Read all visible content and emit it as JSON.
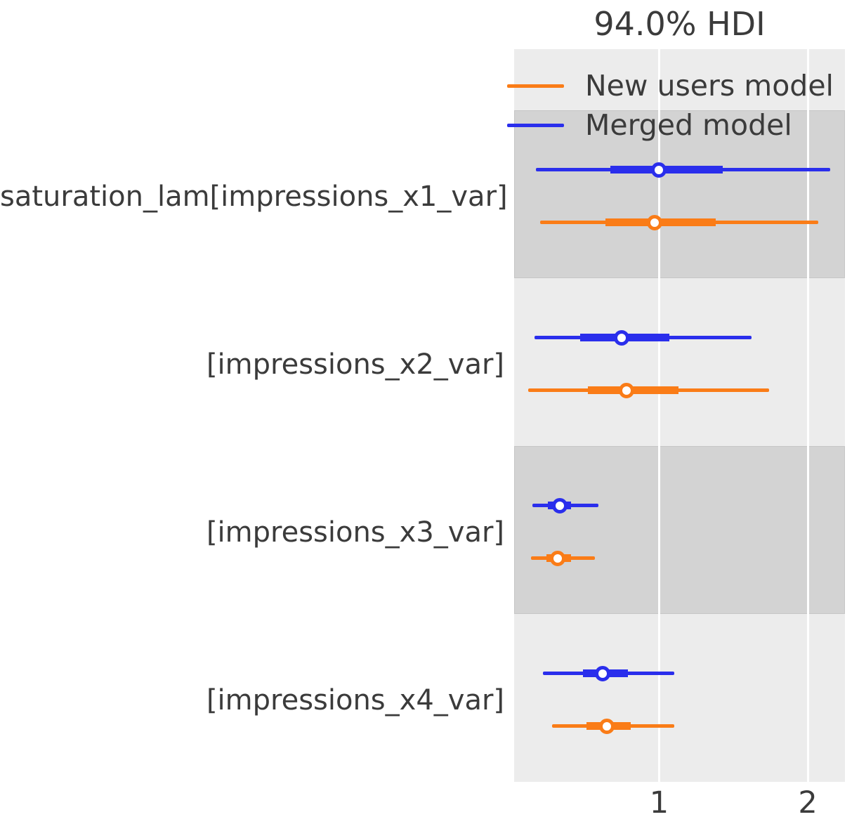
{
  "title": "94.0% HDI",
  "legend": [
    {
      "label": "New users model",
      "color": "#fa7c17"
    },
    {
      "label": "Merged model",
      "color": "#2a2eec"
    }
  ],
  "colors": {
    "orange": "#fa7c17",
    "blue": "#2a2eec",
    "axes_background": "#ececec",
    "shaded_band": "#d3d3d3",
    "band_border": "#c6c6c6",
    "gridline": "#ffffff",
    "text": "#3b3b3b",
    "figure_background": "#ffffff"
  },
  "chart_data": {
    "type": "forest",
    "title": "94.0% HDI",
    "hdi_probability": "94.0%",
    "legend_position": "upper left inside plot",
    "grid": "vertical white gridlines at ticks",
    "x_domain": [
      0.025,
      2.25
    ],
    "x_ticks": [
      {
        "label": "1",
        "value": 1
      },
      {
        "label": "2",
        "value": 2
      }
    ],
    "rows": [
      {
        "label": "saturation_lam[impressions_x1_var]",
        "shaded": true,
        "series": [
          {
            "model": "Merged model",
            "color": "#2a2eec",
            "hdi_94": [
              0.17,
              2.15
            ],
            "quartile": [
              0.67,
              1.43
            ],
            "median": 1.0
          },
          {
            "model": "New users model",
            "color": "#fa7c17",
            "hdi_94": [
              0.2,
              2.07
            ],
            "quartile": [
              0.64,
              1.38
            ],
            "median": 0.97
          }
        ]
      },
      {
        "label": "[impressions_x2_var]",
        "shaded": false,
        "series": [
          {
            "model": "Merged model",
            "color": "#2a2eec",
            "hdi_94": [
              0.16,
              1.62
            ],
            "quartile": [
              0.47,
              1.07
            ],
            "median": 0.75
          },
          {
            "model": "New users model",
            "color": "#fa7c17",
            "hdi_94": [
              0.12,
              1.74
            ],
            "quartile": [
              0.52,
              1.13
            ],
            "median": 0.78
          }
        ]
      },
      {
        "label": "[impressions_x3_var]",
        "shaded": true,
        "series": [
          {
            "model": "Merged model",
            "color": "#2a2eec",
            "hdi_94": [
              0.15,
              0.59
            ],
            "quartile": [
              0.25,
              0.41
            ],
            "median": 0.33
          },
          {
            "model": "New users model",
            "color": "#fa7c17",
            "hdi_94": [
              0.14,
              0.57
            ],
            "quartile": [
              0.24,
              0.41
            ],
            "median": 0.32
          }
        ]
      },
      {
        "label": "[impressions_x4_var]",
        "shaded": false,
        "series": [
          {
            "model": "Merged model",
            "color": "#2a2eec",
            "hdi_94": [
              0.22,
              1.1
            ],
            "quartile": [
              0.49,
              0.79
            ],
            "median": 0.62
          },
          {
            "model": "New users model",
            "color": "#fa7c17",
            "hdi_94": [
              0.28,
              1.1
            ],
            "quartile": [
              0.51,
              0.81
            ],
            "median": 0.65
          }
        ]
      }
    ]
  }
}
